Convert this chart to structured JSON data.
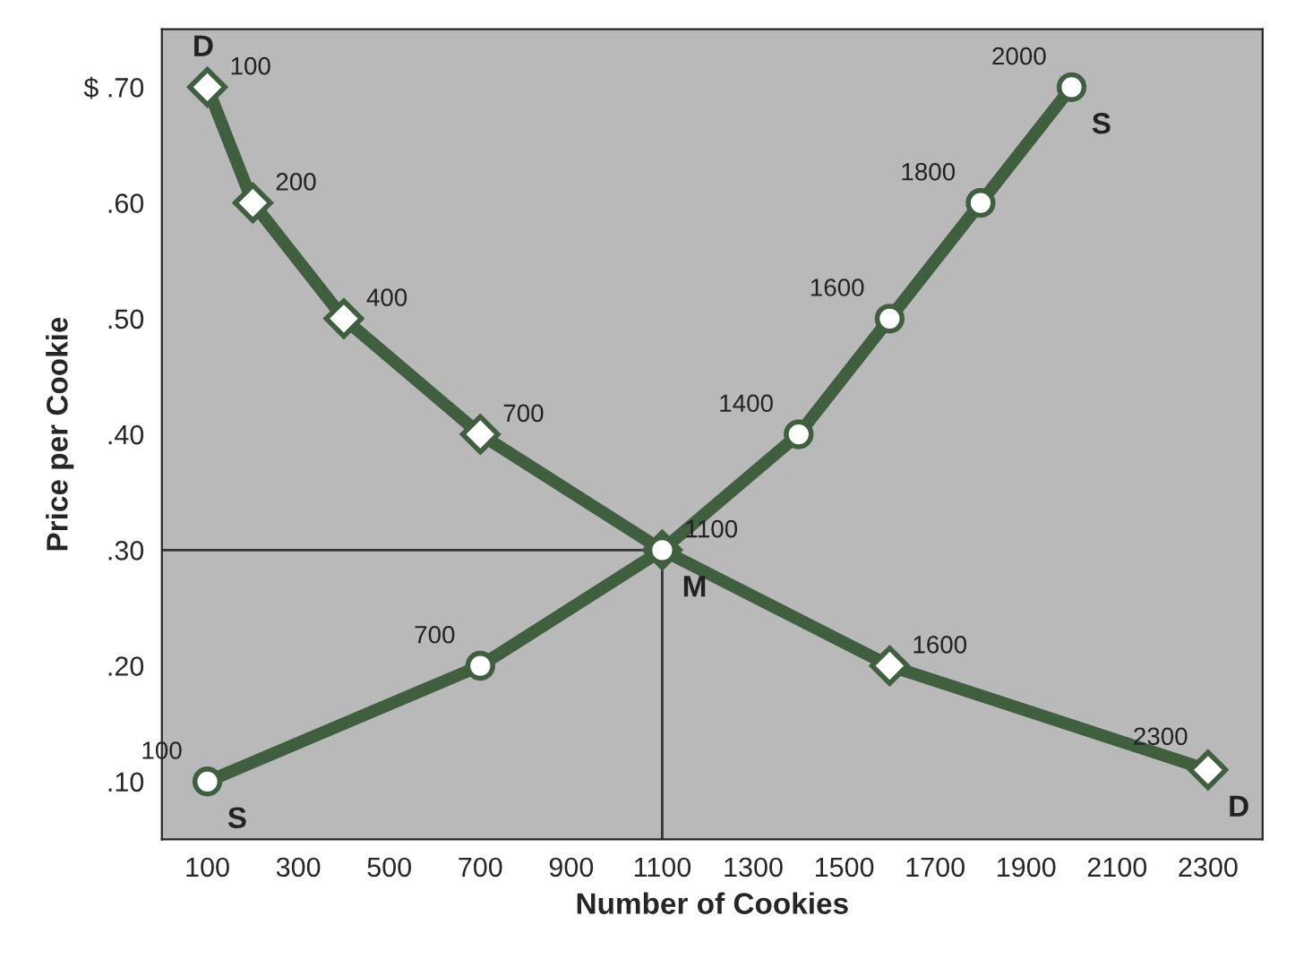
{
  "chart_data": {
    "type": "line",
    "xlabel": "Number of Cookies",
    "ylabel": "Price per Cookie",
    "series": [
      {
        "marker": "diamond",
        "color": "#3f5f3f",
        "x": [
          100,
          200,
          400,
          700,
          1100,
          1600,
          2300
        ],
        "values": [
          0.7,
          0.6,
          0.5,
          0.4,
          0.3,
          0.2,
          0.11
        ]
      },
      {
        "marker": "circle",
        "color": "#3f5f3f",
        "x": [
          100,
          700,
          1100,
          1400,
          1600,
          1800,
          2000
        ],
        "values": [
          0.1,
          0.2,
          0.3,
          0.4,
          0.5,
          0.6,
          0.7
        ]
      }
    ],
    "xlim": [
      0,
      2420
    ],
    "ylim": [
      0.05,
      0.75
    ],
    "xticks": [
      100,
      300,
      500,
      700,
      900,
      1100,
      1300,
      1500,
      1700,
      1900,
      2100,
      2300
    ],
    "yticks": [
      {
        "value": 0.1,
        "label": ".10"
      },
      {
        "value": 0.2,
        "label": ".20"
      },
      {
        "value": 0.3,
        "label": ".30"
      },
      {
        "value": 0.4,
        "label": ".40"
      },
      {
        "value": 0.5,
        "label": ".50"
      },
      {
        "value": 0.6,
        "label": ".60"
      },
      {
        "value": 0.7,
        "label": "$ .70"
      }
    ],
    "ref_lines": [
      {
        "axis": "y",
        "value": 0.3,
        "color": "#333333"
      },
      {
        "axis": "x",
        "value": 1100,
        "color": "#333333"
      }
    ],
    "annotations": [
      {
        "text": "100",
        "x": 100,
        "y": 0.7
      },
      {
        "text": "200",
        "x": 200,
        "y": 0.6
      },
      {
        "text": "400",
        "x": 400,
        "y": 0.5
      },
      {
        "text": "700",
        "x": 700,
        "y": 0.4
      },
      {
        "text": "1600",
        "x": 1600,
        "y": 0.2
      },
      {
        "text": "2300",
        "x": 2300,
        "y": 0.11
      },
      {
        "text": "100",
        "x": 100,
        "y": 0.1
      },
      {
        "text": "700",
        "x": 700,
        "y": 0.2
      },
      {
        "text": "1100",
        "x": 1100,
        "y": 0.3
      },
      {
        "text": "1400",
        "x": 1400,
        "y": 0.4
      },
      {
        "text": "1600",
        "x": 1600,
        "y": 0.5
      },
      {
        "text": "1800",
        "x": 1800,
        "y": 0.6
      },
      {
        "text": "2000",
        "x": 2000,
        "y": 0.7
      },
      {
        "text": "D",
        "x": 100,
        "y": 0.7
      },
      {
        "text": "D",
        "x": 2300,
        "y": 0.11
      },
      {
        "text": "S",
        "x": 100,
        "y": 0.1
      },
      {
        "text": "S",
        "x": 2000,
        "y": 0.7
      },
      {
        "text": "M",
        "x": 1100,
        "y": 0.3
      }
    ],
    "grid": false,
    "legend": false
  }
}
